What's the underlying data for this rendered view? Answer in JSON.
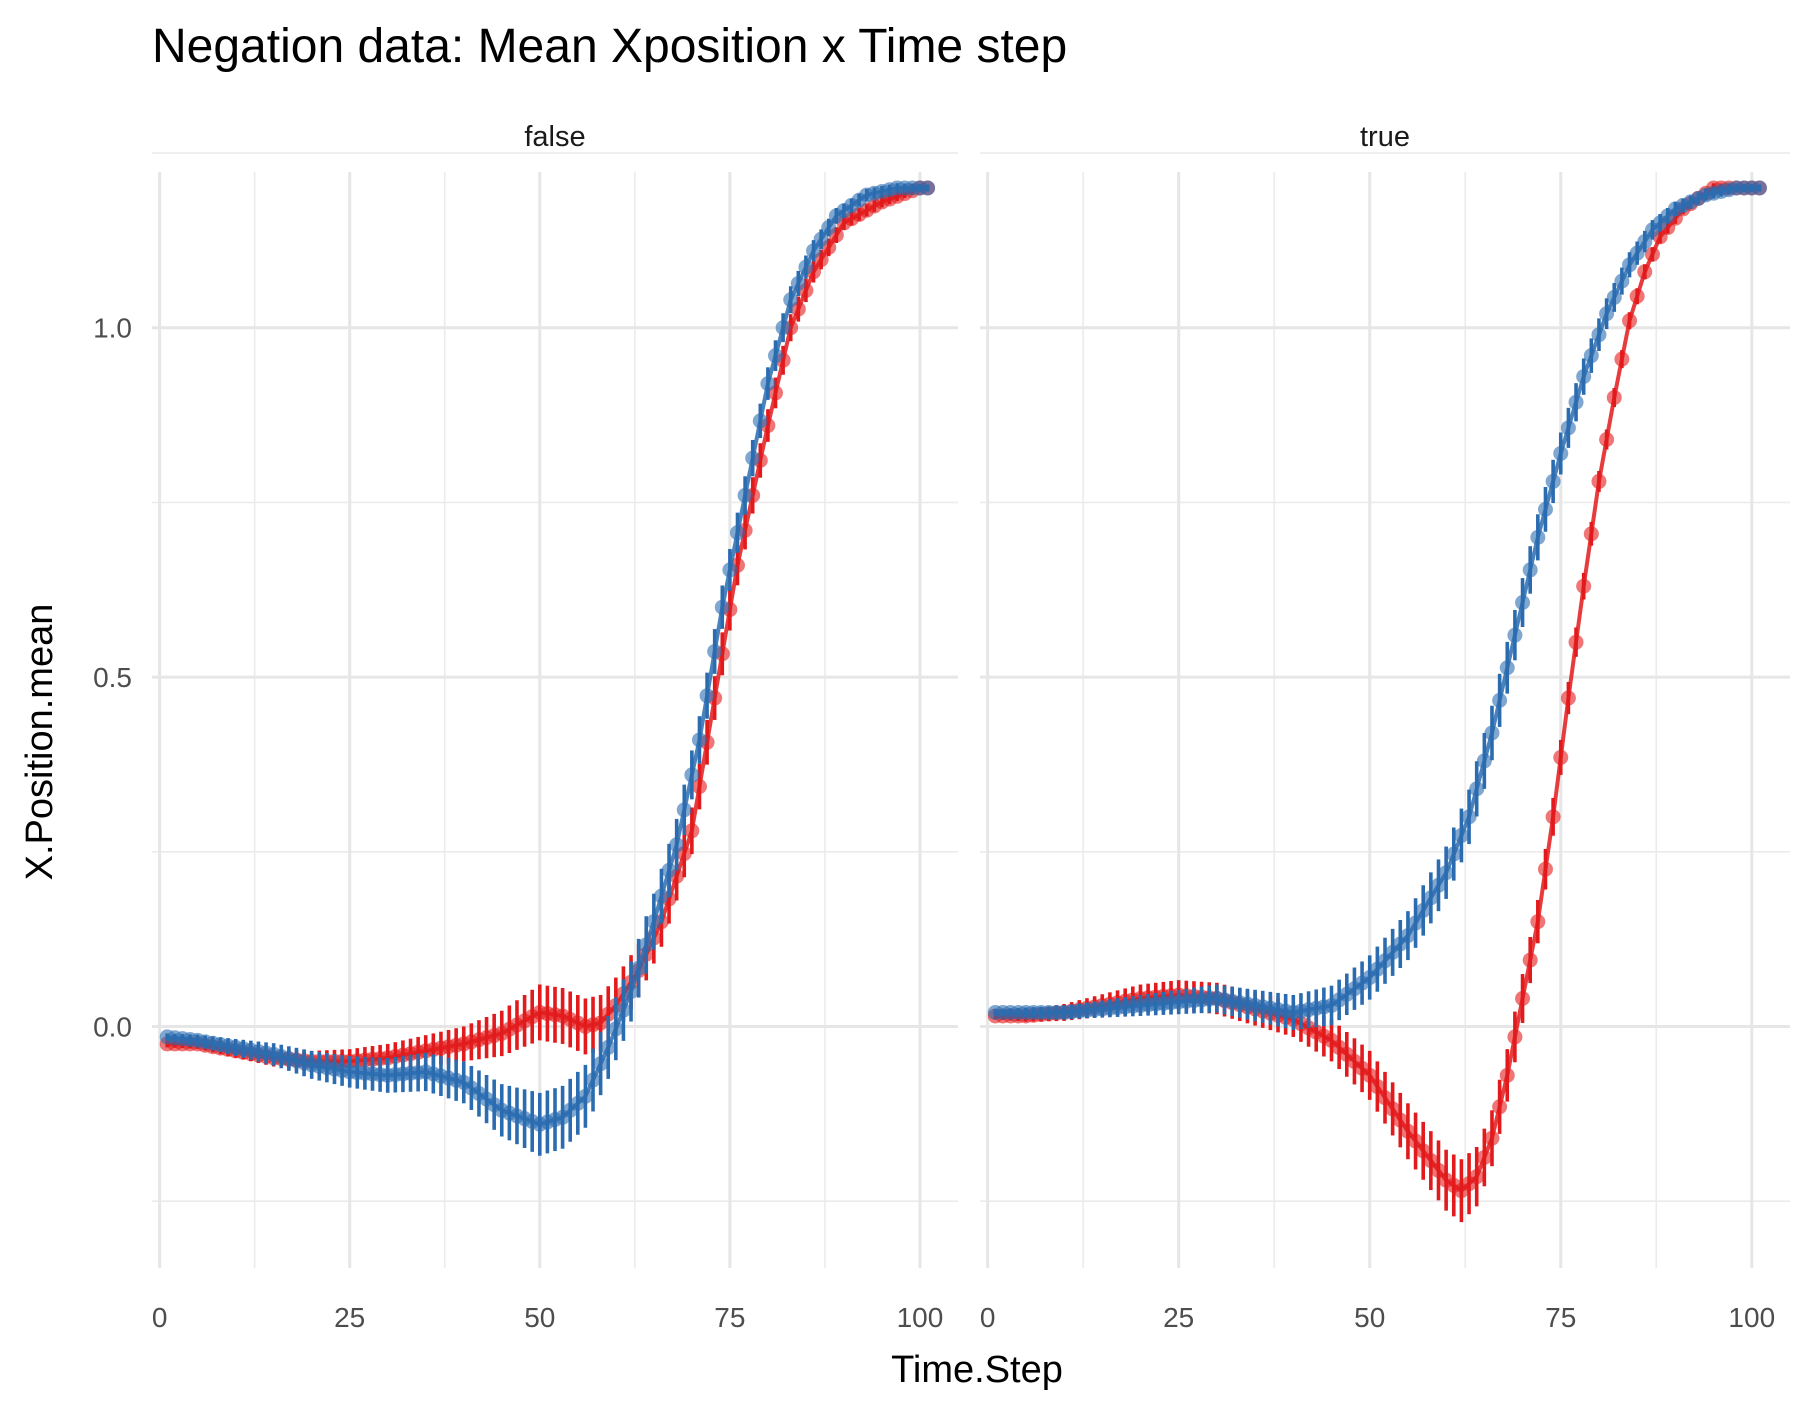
{
  "chart_data": {
    "type": "line",
    "title": "Negation data: Mean Xposition x Time step",
    "xlabel": "Time.Step",
    "ylabel": "X.Position.mean",
    "xlim": [
      -1,
      105
    ],
    "ylim": [
      -0.36,
      1.24
    ],
    "x_ticks": [
      0,
      25,
      50,
      75,
      100
    ],
    "y_ticks": [
      0.0,
      0.5,
      1.0
    ],
    "y_tick_labels": [
      "0.0",
      "0.5",
      "1.0"
    ],
    "grid": true,
    "legend": "none",
    "error_bars": true,
    "panels": [
      {
        "facet_label": "false",
        "series": [
          {
            "color": "#e31a1c",
            "points": [
              [
                1,
                -0.025
              ],
              [
                5,
                -0.025
              ],
              [
                10,
                -0.035
              ],
              [
                15,
                -0.045
              ],
              [
                20,
                -0.05
              ],
              [
                25,
                -0.05
              ],
              [
                30,
                -0.045
              ],
              [
                35,
                -0.035
              ],
              [
                40,
                -0.025
              ],
              [
                45,
                -0.01
              ],
              [
                50,
                0.02
              ],
              [
                53,
                0.015
              ],
              [
                56,
                0.0
              ],
              [
                58,
                0.005
              ],
              [
                60,
                0.03
              ],
              [
                63,
                0.08
              ],
              [
                66,
                0.15
              ],
              [
                70,
                0.28
              ],
              [
                73,
                0.47
              ],
              [
                76,
                0.66
              ],
              [
                80,
                0.86
              ],
              [
                83,
                1.0
              ],
              [
                86,
                1.08
              ],
              [
                90,
                1.15
              ],
              [
                95,
                1.18
              ],
              [
                100,
                1.2
              ],
              [
                101,
                1.2
              ]
            ],
            "error_halfwidth": [
              [
                1,
                0.005
              ],
              [
                20,
                0.015
              ],
              [
                40,
                0.025
              ],
              [
                50,
                0.04
              ],
              [
                60,
                0.04
              ],
              [
                75,
                0.03
              ],
              [
                90,
                0.01
              ],
              [
                101,
                0.005
              ]
            ]
          },
          {
            "color": "#2b6cb0",
            "points": [
              [
                1,
                -0.015
              ],
              [
                5,
                -0.02
              ],
              [
                10,
                -0.03
              ],
              [
                15,
                -0.04
              ],
              [
                20,
                -0.055
              ],
              [
                25,
                -0.065
              ],
              [
                30,
                -0.07
              ],
              [
                35,
                -0.065
              ],
              [
                40,
                -0.08
              ],
              [
                45,
                -0.12
              ],
              [
                50,
                -0.14
              ],
              [
                53,
                -0.13
              ],
              [
                56,
                -0.1
              ],
              [
                59,
                -0.03
              ],
              [
                62,
                0.05
              ],
              [
                65,
                0.15
              ],
              [
                68,
                0.26
              ],
              [
                71,
                0.41
              ],
              [
                74,
                0.6
              ],
              [
                77,
                0.76
              ],
              [
                80,
                0.92
              ],
              [
                83,
                1.04
              ],
              [
                86,
                1.11
              ],
              [
                89,
                1.16
              ],
              [
                93,
                1.19
              ],
              [
                97,
                1.2
              ],
              [
                101,
                1.2
              ]
            ],
            "error_halfwidth": [
              [
                1,
                0.005
              ],
              [
                20,
                0.02
              ],
              [
                40,
                0.03
              ],
              [
                50,
                0.045
              ],
              [
                60,
                0.045
              ],
              [
                75,
                0.03
              ],
              [
                90,
                0.01
              ],
              [
                101,
                0.005
              ]
            ]
          }
        ]
      },
      {
        "facet_label": "true",
        "series": [
          {
            "color": "#e31a1c",
            "points": [
              [
                1,
                0.015
              ],
              [
                5,
                0.015
              ],
              [
                10,
                0.02
              ],
              [
                15,
                0.03
              ],
              [
                20,
                0.04
              ],
              [
                25,
                0.045
              ],
              [
                30,
                0.04
              ],
              [
                35,
                0.025
              ],
              [
                40,
                0.01
              ],
              [
                45,
                -0.02
              ],
              [
                50,
                -0.07
              ],
              [
                55,
                -0.15
              ],
              [
                60,
                -0.22
              ],
              [
                62,
                -0.235
              ],
              [
                64,
                -0.215
              ],
              [
                66,
                -0.16
              ],
              [
                68,
                -0.07
              ],
              [
                70,
                0.04
              ],
              [
                72,
                0.15
              ],
              [
                74,
                0.3
              ],
              [
                76,
                0.47
              ],
              [
                78,
                0.63
              ],
              [
                80,
                0.78
              ],
              [
                82,
                0.9
              ],
              [
                84,
                1.01
              ],
              [
                86,
                1.08
              ],
              [
                88,
                1.13
              ],
              [
                91,
                1.17
              ],
              [
                95,
                1.2
              ],
              [
                101,
                1.2
              ]
            ],
            "error_halfwidth": [
              [
                1,
                0.005
              ],
              [
                20,
                0.02
              ],
              [
                40,
                0.025
              ],
              [
                55,
                0.04
              ],
              [
                62,
                0.045
              ],
              [
                70,
                0.035
              ],
              [
                80,
                0.015
              ],
              [
                90,
                0.008
              ],
              [
                101,
                0.005
              ]
            ]
          },
          {
            "color": "#2b6cb0",
            "points": [
              [
                1,
                0.02
              ],
              [
                5,
                0.02
              ],
              [
                10,
                0.02
              ],
              [
                15,
                0.025
              ],
              [
                20,
                0.03
              ],
              [
                25,
                0.035
              ],
              [
                30,
                0.04
              ],
              [
                35,
                0.03
              ],
              [
                40,
                0.02
              ],
              [
                45,
                0.03
              ],
              [
                50,
                0.07
              ],
              [
                55,
                0.13
              ],
              [
                60,
                0.22
              ],
              [
                63,
                0.3
              ],
              [
                66,
                0.42
              ],
              [
                69,
                0.56
              ],
              [
                72,
                0.7
              ],
              [
                75,
                0.82
              ],
              [
                78,
                0.93
              ],
              [
                81,
                1.02
              ],
              [
                84,
                1.09
              ],
              [
                87,
                1.14
              ],
              [
                90,
                1.17
              ],
              [
                94,
                1.19
              ],
              [
                98,
                1.2
              ],
              [
                101,
                1.2
              ]
            ],
            "error_halfwidth": [
              [
                1,
                0.005
              ],
              [
                20,
                0.015
              ],
              [
                40,
                0.025
              ],
              [
                55,
                0.035
              ],
              [
                65,
                0.04
              ],
              [
                75,
                0.03
              ],
              [
                90,
                0.01
              ],
              [
                101,
                0.005
              ]
            ]
          }
        ]
      }
    ]
  }
}
